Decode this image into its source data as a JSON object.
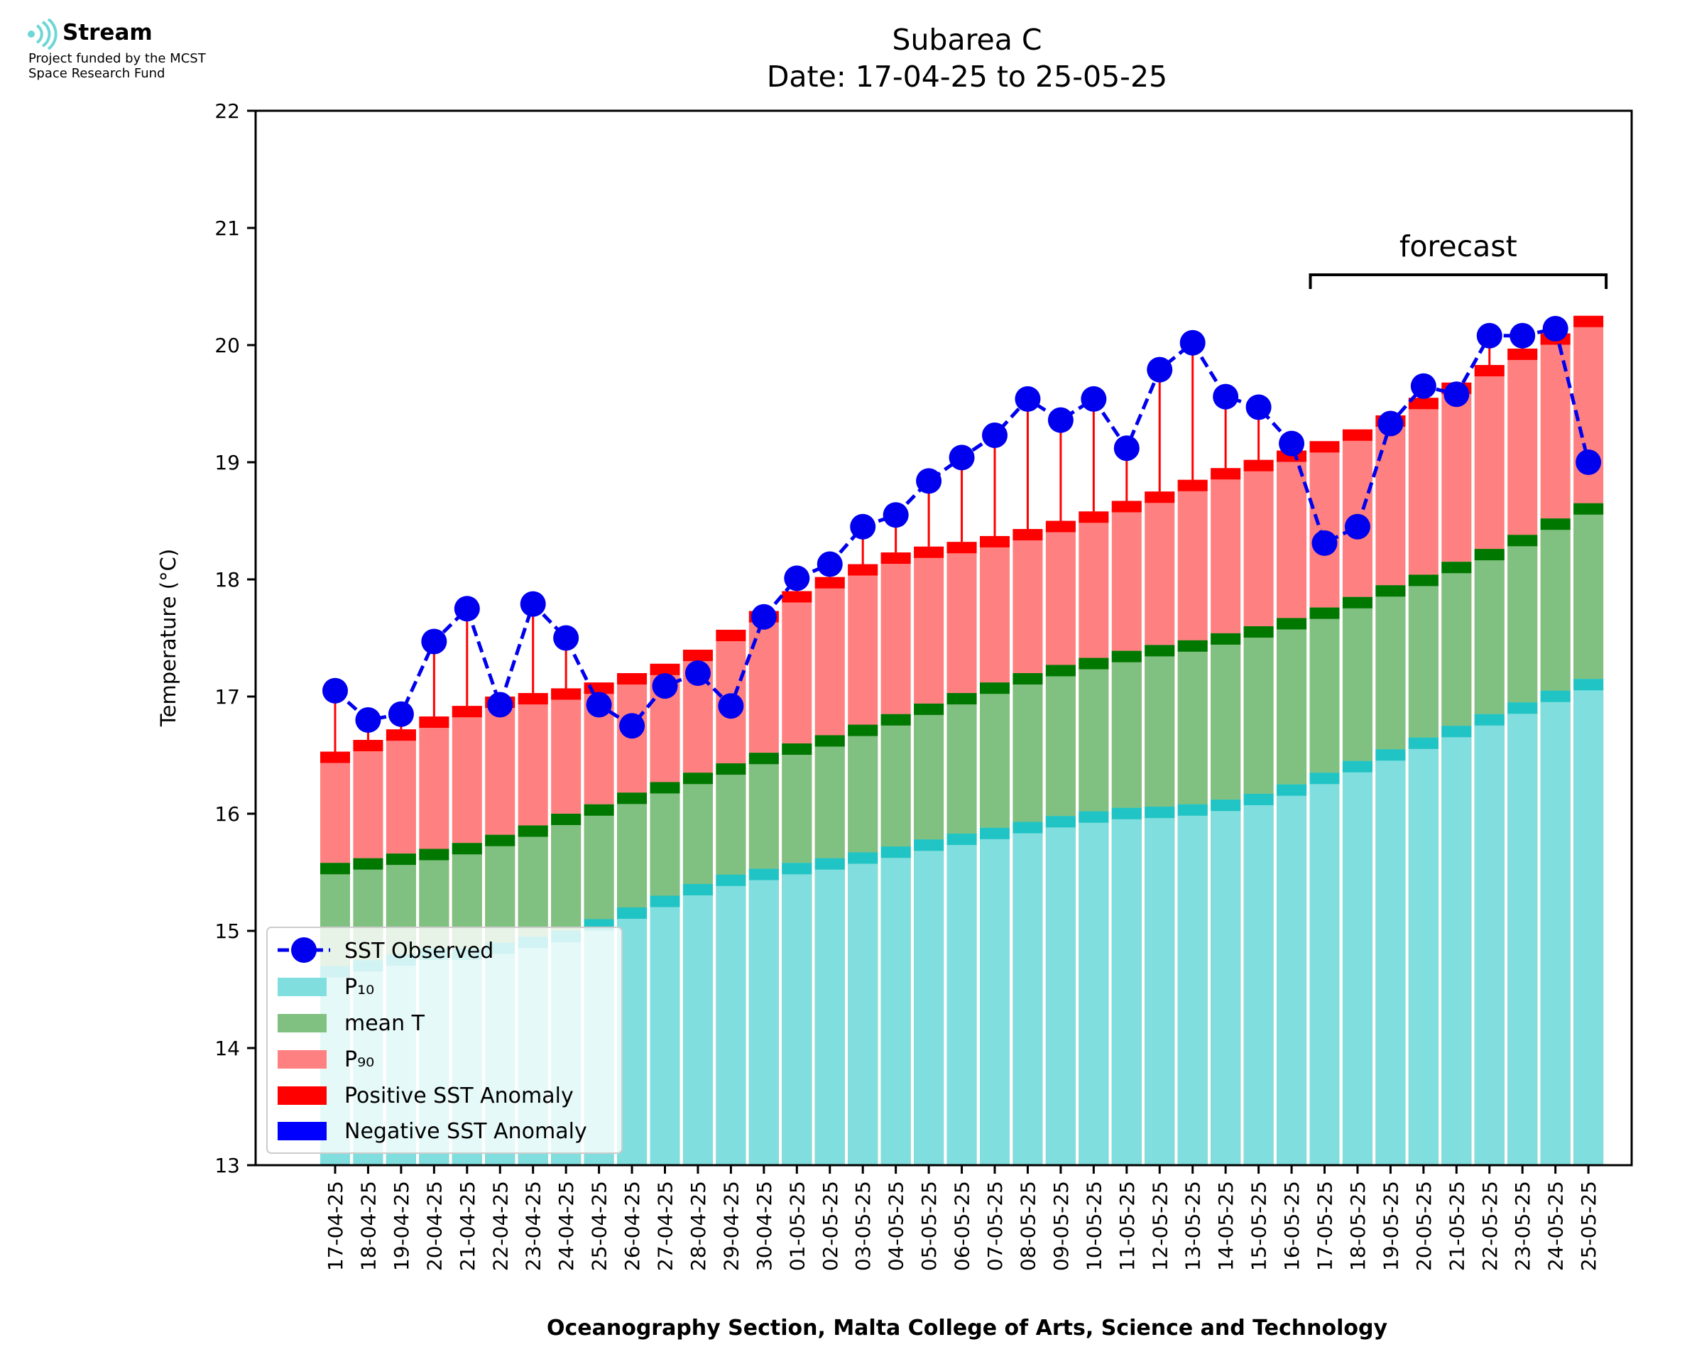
{
  "logo": {
    "brand": "Stream",
    "subtitle_line1": "Project funded by the MCST",
    "subtitle_line2": "Space Research Fund",
    "logo_color": "#6fd6d6"
  },
  "chart_data": {
    "type": "bar",
    "title": "Subarea C",
    "subtitle": "Date: 17-04-25 to 25-05-25",
    "xlabel": "Oceanography Section, Malta College of Arts, Science and Technology",
    "ylabel": "Temperature (°C)",
    "ylim": [
      13,
      22
    ],
    "yticks": [
      "13",
      "14",
      "15",
      "16",
      "17",
      "18",
      "19",
      "20",
      "21",
      "22"
    ],
    "grid": false,
    "legend_position": "lower-left",
    "forecast_label": "forecast",
    "forecast_range": [
      "17-05-25",
      "25-05-25"
    ],
    "categories": [
      "17-04-25",
      "18-04-25",
      "19-04-25",
      "20-04-25",
      "21-04-25",
      "22-04-25",
      "23-04-25",
      "24-04-25",
      "25-04-25",
      "26-04-25",
      "27-04-25",
      "28-04-25",
      "29-04-25",
      "30-04-25",
      "01-05-25",
      "02-05-25",
      "03-05-25",
      "04-05-25",
      "05-05-25",
      "06-05-25",
      "07-05-25",
      "08-05-25",
      "09-05-25",
      "10-05-25",
      "11-05-25",
      "12-05-25",
      "13-05-25",
      "14-05-25",
      "15-05-25",
      "16-05-25",
      "17-05-25",
      "18-05-25",
      "19-05-25",
      "20-05-25",
      "21-05-25",
      "22-05-25",
      "23-05-25",
      "24-05-25",
      "25-05-25"
    ],
    "series": [
      {
        "name": "P10",
        "color": "#80dede",
        "cap_color": "#20c4c4",
        "values": [
          14.7,
          14.75,
          14.8,
          14.85,
          14.85,
          14.9,
          14.95,
          15.0,
          15.1,
          15.2,
          15.3,
          15.4,
          15.48,
          15.53,
          15.58,
          15.62,
          15.67,
          15.72,
          15.78,
          15.83,
          15.88,
          15.93,
          15.98,
          16.02,
          16.05,
          16.06,
          16.08,
          16.12,
          16.17,
          16.25,
          16.35,
          16.45,
          16.55,
          16.65,
          16.75,
          16.85,
          16.95,
          17.05,
          17.15
        ]
      },
      {
        "name": "mean T",
        "color": "#80c080",
        "cap_color": "#007800",
        "values": [
          15.58,
          15.62,
          15.66,
          15.7,
          15.75,
          15.82,
          15.9,
          16.0,
          16.08,
          16.18,
          16.27,
          16.35,
          16.43,
          16.52,
          16.6,
          16.67,
          16.76,
          16.85,
          16.94,
          17.03,
          17.12,
          17.2,
          17.27,
          17.33,
          17.39,
          17.44,
          17.48,
          17.54,
          17.6,
          17.67,
          17.76,
          17.85,
          17.95,
          18.04,
          18.15,
          18.26,
          18.38,
          18.52,
          18.65
        ]
      },
      {
        "name": "P90",
        "color": "#ff8080",
        "cap_color": "#ff0000",
        "values": [
          16.53,
          16.63,
          16.72,
          16.83,
          16.92,
          17.0,
          17.03,
          17.07,
          17.12,
          17.2,
          17.28,
          17.4,
          17.57,
          17.73,
          17.9,
          18.02,
          18.13,
          18.23,
          18.28,
          18.32,
          18.37,
          18.43,
          18.5,
          18.58,
          18.67,
          18.75,
          18.85,
          18.95,
          19.02,
          19.1,
          19.18,
          19.28,
          19.4,
          19.55,
          19.68,
          19.83,
          19.97,
          20.1,
          20.25
        ]
      },
      {
        "name": "SST Observed",
        "color": "#0000ee",
        "values": [
          17.05,
          16.8,
          16.85,
          17.47,
          17.75,
          16.93,
          17.79,
          17.5,
          16.93,
          16.75,
          17.09,
          17.2,
          16.92,
          17.68,
          18.01,
          18.13,
          18.45,
          18.55,
          18.84,
          19.04,
          19.23,
          19.54,
          19.36,
          19.54,
          19.12,
          19.79,
          20.02,
          19.56,
          19.47,
          19.16,
          18.31,
          18.45,
          19.33,
          19.65,
          19.58,
          20.08,
          20.08,
          20.14,
          19.0
        ]
      }
    ],
    "legend": {
      "sst_observed": "SST Observed",
      "p10": "P₁₀",
      "mean_t": "mean T",
      "p90": "P₉₀",
      "positive_anomaly": "Positive SST Anomaly",
      "negative_anomaly": "Negative SST Anomaly"
    },
    "anomaly_colors": {
      "positive": "#ff0000",
      "negative": "#0000ff"
    }
  }
}
